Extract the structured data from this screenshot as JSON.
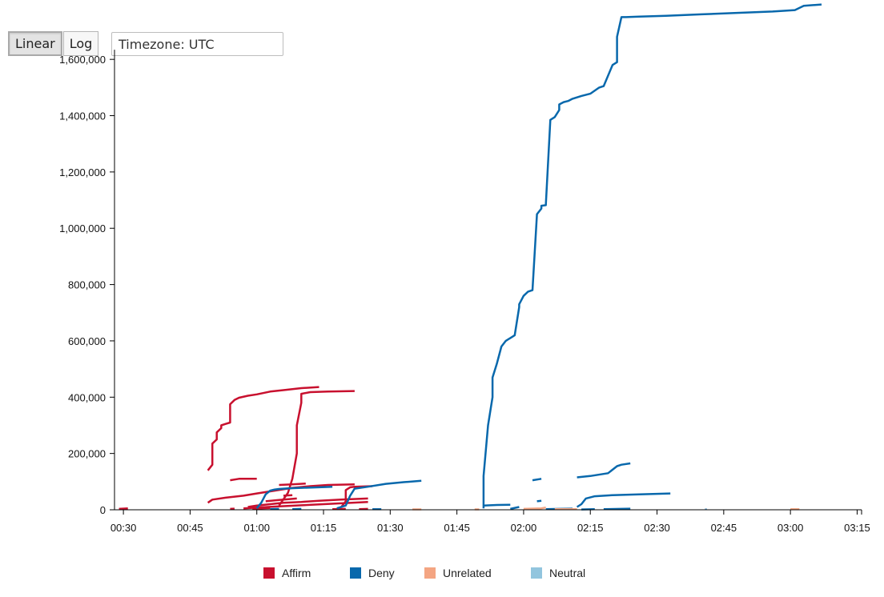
{
  "controls": {
    "linear_label": "Linear",
    "log_label": "Log",
    "active_scale": "linear",
    "timezone_value": "Timezone: UTC"
  },
  "colors": {
    "affirm": "#c8102e",
    "deny": "#0868ac",
    "unrelated": "#f4a582",
    "neutral": "#92c5de",
    "axis": "#000000"
  },
  "chart_data": {
    "type": "line",
    "title": "",
    "xlabel": "",
    "ylabel": "",
    "x_unit": "time (UTC, HH:MM)",
    "xlim": [
      "00:28",
      "03:16"
    ],
    "ylim": [
      0,
      1700000
    ],
    "x_ticks": [
      "00:30",
      "00:45",
      "01:00",
      "01:15",
      "01:30",
      "01:45",
      "02:00",
      "02:15",
      "02:30",
      "02:45",
      "03:00",
      "03:15"
    ],
    "y_ticks": [
      0,
      200000,
      400000,
      600000,
      800000,
      1000000,
      1200000,
      1400000,
      1600000
    ],
    "y_tick_labels": [
      "0",
      "200,000",
      "400,000",
      "600,000",
      "800,000",
      "1,000,000",
      "1,200,000",
      "1,400,000",
      "1,600,000"
    ],
    "grid": false,
    "legend_position": "bottom-center",
    "series": [
      {
        "name": "Affirm",
        "color_key": "affirm",
        "lines": [
          {
            "x": [
              "00:29",
              "00:31"
            ],
            "y": [
              3000,
              5000
            ]
          },
          {
            "x": [
              "00:49",
              "00:50",
              "00:50",
              "00:51",
              "00:51",
              "00:52",
              "00:52",
              "00:53",
              "00:54",
              "00:54",
              "00:55",
              "00:56",
              "00:58",
              "01:00",
              "01:03",
              "01:06",
              "01:10",
              "01:14"
            ],
            "y": [
              140000,
              160000,
              235000,
              250000,
              275000,
              290000,
              300000,
              305000,
              310000,
              375000,
              390000,
              398000,
              405000,
              410000,
              420000,
              425000,
              432000,
              436000
            ]
          },
          {
            "x": [
              "01:05",
              "01:07",
              "01:08",
              "01:09",
              "01:09",
              "01:10",
              "01:10",
              "01:12",
              "01:16",
              "01:22"
            ],
            "y": [
              15000,
              60000,
              110000,
              200000,
              300000,
              380000,
              412000,
              418000,
              420000,
              422000
            ]
          },
          {
            "x": [
              "00:49",
              "00:50",
              "00:53",
              "00:57",
              "01:00",
              "01:04",
              "01:08",
              "01:12",
              "01:16",
              "01:22"
            ],
            "y": [
              25000,
              36000,
              43000,
              50000,
              58000,
              68000,
              78000,
              84000,
              88000,
              90000
            ]
          },
          {
            "x": [
              "00:54",
              "00:56",
              "01:00"
            ],
            "y": [
              105000,
              110000,
              110000
            ]
          },
          {
            "x": [
              "00:58",
              "01:00",
              "01:03",
              "01:06",
              "01:10",
              "01:14",
              "01:19",
              "01:25"
            ],
            "y": [
              10000,
              15000,
              20000,
              25000,
              28000,
              32000,
              36000,
              40000
            ]
          },
          {
            "x": [
              "01:05",
              "01:08",
              "01:11"
            ],
            "y": [
              88000,
              90000,
              93000
            ]
          },
          {
            "x": [
              "00:57",
              "01:00",
              "01:05",
              "01:10",
              "01:15",
              "01:20",
              "01:25"
            ],
            "y": [
              5000,
              8000,
              12000,
              16000,
              20000,
              24000,
              28000
            ]
          },
          {
            "x": [
              "01:19",
              "01:20",
              "01:20",
              "01:21",
              "01:22",
              "01:26"
            ],
            "y": [
              10000,
              30000,
              70000,
              80000,
              82000,
              84000
            ]
          },
          {
            "x": [
              "01:02",
              "01:05",
              "01:09"
            ],
            "y": [
              30000,
              35000,
              40000
            ]
          },
          {
            "x": [
              "01:06",
              "01:08"
            ],
            "y": [
              50000,
              52000
            ]
          },
          {
            "x": [
              "00:54",
              "00:55"
            ],
            "y": [
              3000,
              4000
            ]
          },
          {
            "x": [
              "00:59",
              "01:01",
              "01:03"
            ],
            "y": [
              4000,
              5000,
              6000
            ]
          },
          {
            "x": [
              "01:17",
              "01:20"
            ],
            "y": [
              2000,
              3000
            ]
          },
          {
            "x": [
              "01:23",
              "01:25"
            ],
            "y": [
              2000,
              3000
            ]
          }
        ]
      },
      {
        "name": "Deny",
        "color_key": "deny",
        "lines": [
          {
            "x": [
              "01:00",
              "01:01",
              "01:02",
              "01:03",
              "01:04",
              "01:05",
              "01:07",
              "01:10",
              "01:14",
              "01:17"
            ],
            "y": [
              5000,
              25000,
              55000,
              68000,
              72000,
              74000,
              76000,
              78000,
              80000,
              82000
            ]
          },
          {
            "x": [
              "01:18",
              "01:20",
              "01:21",
              "01:22",
              "01:25",
              "01:29",
              "01:33",
              "01:37"
            ],
            "y": [
              5000,
              15000,
              50000,
              75000,
              82000,
              92000,
              98000,
              103000
            ]
          },
          {
            "x": [
              "01:03",
              "01:05"
            ],
            "y": [
              2000,
              3000
            ]
          },
          {
            "x": [
              "01:08",
              "01:10"
            ],
            "y": [
              2000,
              3000
            ]
          },
          {
            "x": [
              "01:26",
              "01:28"
            ],
            "y": [
              2000,
              2000
            ]
          },
          {
            "x": [
              "01:51",
              "01:51",
              "01:52",
              "01:53",
              "01:53",
              "01:54",
              "01:55",
              "01:56",
              "01:57",
              "01:58",
              "01:59",
              "01:59",
              "02:00",
              "02:01",
              "02:02",
              "02:03",
              "02:04",
              "02:04",
              "02:05",
              "02:05",
              "02:06",
              "02:07",
              "02:08",
              "02:08",
              "02:09",
              "02:10",
              "02:11",
              "02:13",
              "02:15",
              "02:17",
              "02:18",
              "02:20",
              "02:21",
              "02:21",
              "02:22",
              "02:23",
              "02:26",
              "02:32",
              "02:40",
              "02:48",
              "02:56",
              "03:01",
              "03:03",
              "03:07"
            ],
            "y": [
              5000,
              120000,
              300000,
              400000,
              470000,
              520000,
              580000,
              600000,
              610000,
              620000,
              720000,
              730000,
              760000,
              775000,
              780000,
              1050000,
              1070000,
              1080000,
              1082000,
              1085000,
              1385000,
              1395000,
              1420000,
              1440000,
              1448000,
              1452000,
              1460000,
              1470000,
              1478000,
              1500000,
              1505000,
              1580000,
              1590000,
              1680000,
              1750000,
              1750000,
              1752000,
              1755000,
              1760000,
              1765000,
              1770000,
              1775000,
              1790000,
              1795000
            ]
          },
          {
            "x": [
              "01:51",
              "01:54",
              "01:57"
            ],
            "y": [
              15000,
              17000,
              18000
            ]
          },
          {
            "x": [
              "01:57",
              "01:59"
            ],
            "y": [
              3000,
              10000
            ]
          },
          {
            "x": [
              "02:02",
              "02:04"
            ],
            "y": [
              105000,
              110000
            ]
          },
          {
            "x": [
              "02:03",
              "02:04"
            ],
            "y": [
              30000,
              32000
            ]
          },
          {
            "x": [
              "02:05",
              "02:08",
              "02:11"
            ],
            "y": [
              2000,
              3000,
              4000
            ]
          },
          {
            "x": [
              "02:12",
              "02:15",
              "02:19",
              "02:21",
              "02:22",
              "02:24"
            ],
            "y": [
              115000,
              120000,
              130000,
              155000,
              160000,
              165000
            ]
          },
          {
            "x": [
              "02:12",
              "02:13",
              "02:14",
              "02:16",
              "02:20",
              "02:26",
              "02:33"
            ],
            "y": [
              10000,
              20000,
              40000,
              48000,
              52000,
              55000,
              58000
            ]
          },
          {
            "x": [
              "02:13",
              "02:16"
            ],
            "y": [
              1000,
              2000
            ]
          },
          {
            "x": [
              "02:18",
              "02:24"
            ],
            "y": [
              2000,
              4000
            ]
          },
          {
            "x": [
              "02:41",
              "02:41"
            ],
            "y": [
              2000,
              4000
            ]
          }
        ]
      },
      {
        "name": "Unrelated",
        "color_key": "unrelated",
        "lines": [
          {
            "x": [
              "01:35",
              "01:37"
            ],
            "y": [
              1500,
              1500
            ]
          },
          {
            "x": [
              "01:49",
              "01:50"
            ],
            "y": [
              1500,
              1500
            ]
          },
          {
            "x": [
              "02:00",
              "02:04",
              "02:05"
            ],
            "y": [
              3000,
              5000,
              8000
            ]
          },
          {
            "x": [
              "02:07",
              "02:12"
            ],
            "y": [
              2000,
              2000
            ]
          },
          {
            "x": [
              "03:00",
              "03:02"
            ],
            "y": [
              2000,
              2000
            ]
          }
        ]
      },
      {
        "name": "Neutral",
        "color_key": "neutral",
        "lines": []
      }
    ]
  }
}
